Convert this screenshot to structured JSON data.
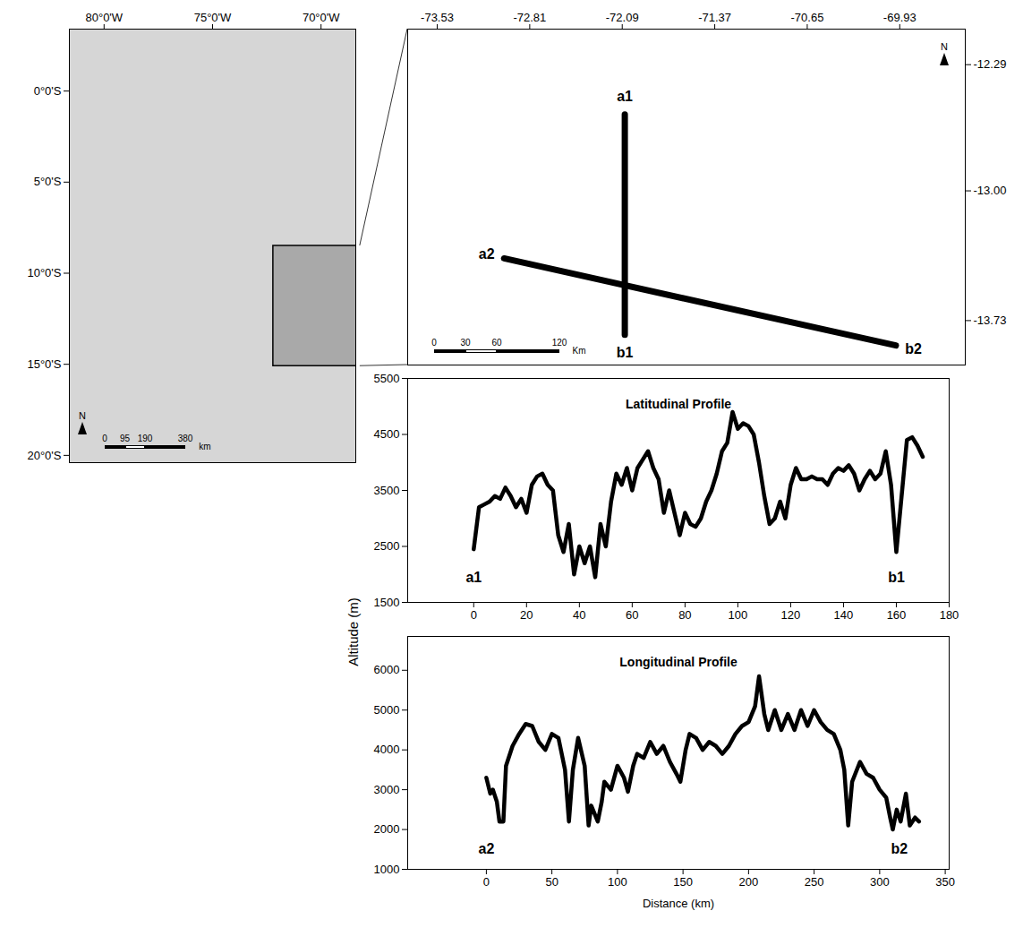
{
  "figure": {
    "ylabel": "Altitude (m)"
  },
  "chart_data": [
    {
      "type": "map",
      "xlim": [
        -81.6,
        -68.4
      ],
      "ylim": [
        -20.4,
        3.4
      ],
      "xticks": [
        {
          "value": -80,
          "label": "80°0'W"
        },
        {
          "value": -75,
          "label": "75°0'W"
        },
        {
          "value": -70,
          "label": "70°0'W"
        }
      ],
      "yticks": [
        {
          "value": 0,
          "label": "0°0'S"
        },
        {
          "value": -5,
          "label": "5°0'S"
        },
        {
          "value": -10,
          "label": "10°0'S"
        },
        {
          "value": -15,
          "label": "15°0'S"
        },
        {
          "value": -20,
          "label": "20°0'S"
        }
      ],
      "study_area": {
        "lon": [
          -72.2,
          -68.2
        ],
        "lat": [
          -15.1,
          -8.5
        ]
      },
      "scale_bar": {
        "values": [
          0,
          95,
          190,
          380
        ],
        "unit": "km"
      },
      "north_label": "N"
    },
    {
      "type": "map",
      "xlim": [
        -73.76,
        -69.42
      ],
      "ylim": [
        -13.98,
        -12.09
      ],
      "xticks": [
        -73.53,
        -72.81,
        -72.09,
        -71.37,
        -70.65,
        -69.93
      ],
      "yticks": [
        -12.29,
        {
          "value": -13,
          "label": "-13.00"
        },
        -13.73
      ],
      "transects": [
        {
          "start": "a1",
          "end": "b1",
          "lon": [
            -72.07,
            -72.07
          ],
          "lat": [
            -12.57,
            -13.81
          ]
        },
        {
          "start": "a2",
          "end": "b2",
          "lon": [
            -73.01,
            -69.96
          ],
          "lat": [
            -13.38,
            -13.87
          ]
        }
      ],
      "scale_bar": {
        "values": [
          0,
          30,
          60,
          120
        ],
        "unit": "Km"
      },
      "north_label": "N"
    },
    {
      "type": "line",
      "title": "Latitudinal Profile",
      "color": "#000000",
      "xlim": [
        -25,
        180
      ],
      "ylim": [
        1500,
        5500
      ],
      "xticks": [
        0,
        20,
        40,
        60,
        80,
        100,
        120,
        140,
        160,
        180
      ],
      "yticks": [
        1500,
        2500,
        3500,
        4500,
        5500
      ],
      "x": [
        0,
        2,
        4,
        6,
        8,
        10,
        12,
        14,
        16,
        18,
        20,
        22,
        24,
        26,
        28,
        30,
        32,
        34,
        36,
        38,
        40,
        42,
        44,
        46,
        48,
        50,
        52,
        54,
        56,
        58,
        60,
        62,
        64,
        66,
        68,
        70,
        72,
        74,
        76,
        78,
        80,
        82,
        84,
        86,
        88,
        90,
        92,
        94,
        96,
        98,
        100,
        102,
        104,
        106,
        108,
        110,
        112,
        114,
        116,
        118,
        120,
        122,
        124,
        126,
        128,
        130,
        132,
        134,
        136,
        138,
        140,
        142,
        144,
        146,
        148,
        150,
        152,
        154,
        156,
        158,
        160,
        162,
        164,
        166,
        168,
        170
      ],
      "values": [
        2450,
        3200,
        3250,
        3300,
        3400,
        3350,
        3550,
        3400,
        3200,
        3350,
        3100,
        3600,
        3750,
        3800,
        3600,
        3500,
        2700,
        2400,
        2900,
        2000,
        2500,
        2200,
        2500,
        1950,
        2900,
        2500,
        3300,
        3800,
        3600,
        3900,
        3500,
        3900,
        4050,
        4200,
        3900,
        3700,
        3100,
        3500,
        3100,
        2700,
        3100,
        2900,
        2850,
        3000,
        3300,
        3500,
        3800,
        4200,
        4350,
        4900,
        4600,
        4700,
        4650,
        4500,
        4000,
        3400,
        2900,
        3000,
        3300,
        3000,
        3600,
        3900,
        3700,
        3700,
        3750,
        3700,
        3700,
        3600,
        3800,
        3900,
        3850,
        3950,
        3800,
        3500,
        3700,
        3850,
        3700,
        3800,
        4200,
        3600,
        2400,
        3400,
        4400,
        4450,
        4300,
        4100
      ],
      "annotations": [
        {
          "text": "a1",
          "x": 0,
          "y": 1950
        },
        {
          "text": "b1",
          "x": 160,
          "y": 1950
        }
      ]
    },
    {
      "type": "line",
      "title": "Longitudinal Profile",
      "xlabel": "Distance (km)",
      "color": "#000000",
      "xlim": [
        -60,
        353
      ],
      "ylim": [
        1000,
        6850
      ],
      "xticks": [
        0,
        50,
        100,
        150,
        200,
        250,
        300,
        350
      ],
      "yticks": [
        1000,
        2000,
        3000,
        4000,
        5000,
        6000
      ],
      "x": [
        0,
        3,
        5,
        8,
        10,
        13,
        15,
        20,
        25,
        30,
        35,
        40,
        45,
        50,
        55,
        60,
        63,
        66,
        70,
        75,
        78,
        80,
        85,
        88,
        90,
        95,
        100,
        105,
        108,
        112,
        115,
        120,
        125,
        130,
        135,
        140,
        145,
        148,
        152,
        155,
        160,
        165,
        170,
        175,
        180,
        185,
        190,
        195,
        200,
        205,
        208,
        212,
        215,
        220,
        225,
        230,
        235,
        240,
        245,
        250,
        255,
        260,
        265,
        270,
        273,
        276,
        279,
        285,
        290,
        295,
        300,
        305,
        308,
        310,
        313,
        316,
        320,
        323,
        327,
        330
      ],
      "values": [
        3300,
        2900,
        3000,
        2700,
        2200,
        2200,
        3600,
        4100,
        4400,
        4650,
        4600,
        4200,
        4000,
        4400,
        4300,
        3500,
        2200,
        3500,
        4300,
        3600,
        2100,
        2600,
        2200,
        2700,
        3200,
        3000,
        3600,
        3300,
        2950,
        3600,
        3900,
        3800,
        4200,
        3900,
        4100,
        3700,
        3400,
        3200,
        4000,
        4400,
        4300,
        4000,
        4200,
        4100,
        3900,
        4100,
        4400,
        4600,
        4700,
        5100,
        5850,
        4900,
        4500,
        5000,
        4500,
        4900,
        4500,
        5000,
        4600,
        5000,
        4700,
        4500,
        4400,
        4000,
        3500,
        2100,
        3200,
        3700,
        3400,
        3300,
        3000,
        2800,
        2300,
        2000,
        2500,
        2200,
        2900,
        2100,
        2300,
        2200
      ],
      "annotations": [
        {
          "text": "a2",
          "x": 0,
          "y": 1500
        },
        {
          "text": "b2",
          "x": 315,
          "y": 1500
        }
      ]
    }
  ]
}
